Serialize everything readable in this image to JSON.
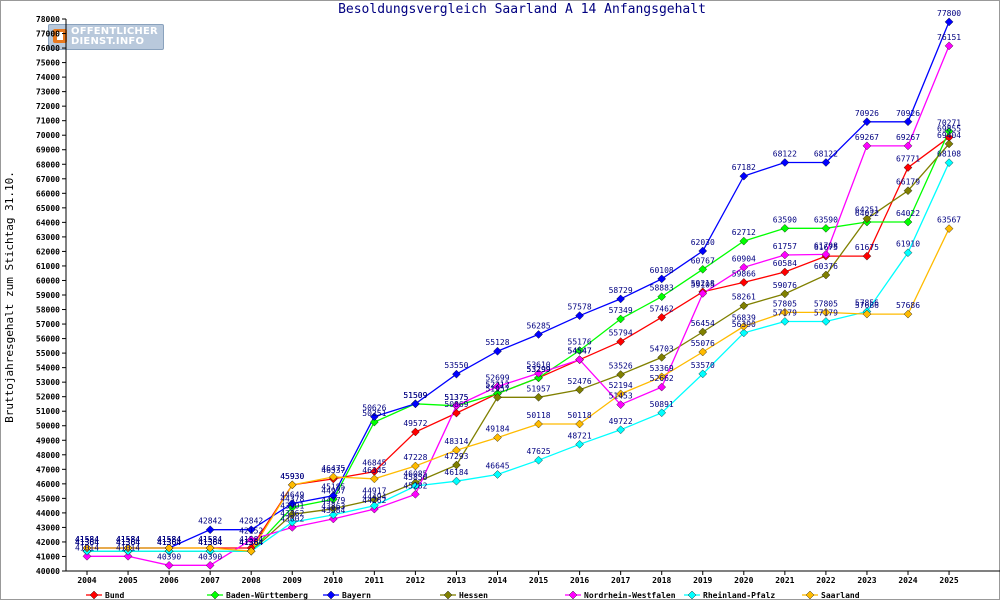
{
  "logo": {
    "line1": "OFFENTLICHER",
    "line2": "DIENST.INFO"
  },
  "chart_data": {
    "type": "line",
    "title": "Besoldungsvergleich Saarland A 14 Anfangsgehalt",
    "xlabel": "",
    "ylabel": "Bruttojahresgehalt zum Stichtag 31.10.",
    "ylim": [
      40000,
      78000
    ],
    "ytick_step": 1000,
    "grid": false,
    "legend": "bottom",
    "categories": [
      "2004",
      "2005",
      "2006",
      "2007",
      "2008",
      "2009",
      "2010",
      "2011",
      "2012",
      "2013",
      "2014",
      "2015",
      "2016",
      "2017",
      "2018",
      "2019",
      "2020",
      "2021",
      "2022",
      "2023",
      "2024",
      "2025"
    ],
    "series": [
      {
        "name": "Bund",
        "color": "#ff0000",
        "values": [
          41584,
          41584,
          41584,
          41584,
          41584,
          45930,
          46337,
          46845,
          49572,
          50869,
          52212,
          53299,
          54547,
          55794,
          57462,
          59218,
          59866,
          60584,
          61675,
          61675,
          67771,
          69855
        ]
      },
      {
        "name": "Baden-Württemberg",
        "color": "#00ff00",
        "values": [
          41364,
          41364,
          41364,
          41364,
          41364,
          44378,
          44937,
          50251,
          51509,
          51375,
          52212,
          53299,
          55176,
          57349,
          58883,
          60767,
          62712,
          63590,
          63590,
          64022,
          64022,
          70271
        ]
      },
      {
        "name": "Bayern",
        "color": "#0000ff",
        "values": [
          41584,
          41584,
          41584,
          42842,
          42842,
          44649,
          45185,
          50626,
          51509,
          53550,
          55128,
          56285,
          57578,
          58729,
          60108,
          62030,
          67182,
          68122,
          68122,
          70926,
          70926,
          77800
        ]
      },
      {
        "name": "Hessen",
        "color": "#808000",
        "values": [
          41364,
          41364,
          41364,
          41364,
          41364,
          43901,
          44279,
          44917,
          46085,
          47293,
          51957,
          51957,
          52476,
          53526,
          54703,
          56454,
          58261,
          59076,
          60376,
          64251,
          66179,
          69404
        ]
      },
      {
        "name": "Nordrhein-Westfalen",
        "color": "#ff00ff",
        "values": [
          41014,
          41014,
          40390,
          40390,
          42152,
          43002,
          43584,
          44262,
          45282,
          51375,
          52699,
          53610,
          54547,
          51453,
          52662,
          59105,
          60904,
          61757,
          61798,
          69267,
          69267,
          76151
        ]
      },
      {
        "name": "Rheinland-Pfalz",
        "color": "#00ffff",
        "values": [
          41364,
          41364,
          41364,
          41364,
          41364,
          43362,
          43863,
          44494,
          45850,
          46184,
          46645,
          47625,
          48721,
          49722,
          50891,
          53570,
          56390,
          57179,
          57179,
          57856,
          61910,
          68108
        ]
      },
      {
        "name": "Saarland",
        "color": "#ffbb00",
        "values": [
          41584,
          41584,
          41584,
          41584,
          41364,
          45930,
          46475,
          46345,
          47228,
          48314,
          49184,
          50118,
          50118,
          52194,
          53369,
          55076,
          56839,
          57805,
          57805,
          57686,
          57686,
          63567
        ]
      }
    ]
  }
}
